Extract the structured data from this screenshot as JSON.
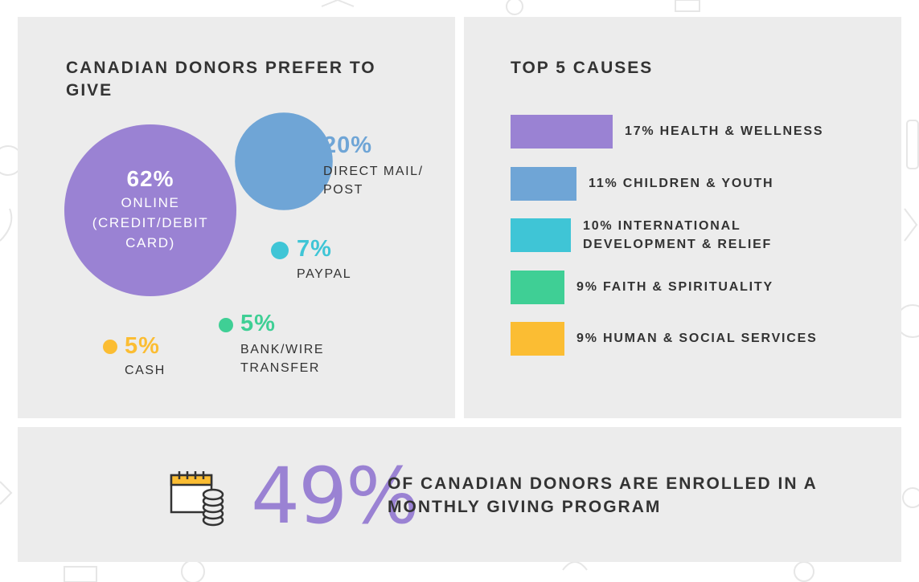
{
  "colors": {
    "purple": "#9a82d3",
    "blue": "#6fa5d6",
    "cyan": "#3fc5d6",
    "green": "#3fcf95",
    "yellow": "#fbbd33",
    "text": "#333333",
    "panel": "#ececec"
  },
  "chart_data": [
    {
      "type": "bubble",
      "title": "CANADIAN DONORS PREFER TO GIVE",
      "unit": "%",
      "series": [
        {
          "category": "ONLINE (CREDIT/DEBIT CARD)",
          "value": 62,
          "label": "62%",
          "color": "#9a82d3"
        },
        {
          "category": "DIRECT MAIL/ POST",
          "value": 20,
          "label": "20%",
          "color": "#6fa5d6"
        },
        {
          "category": "PAYPAL",
          "value": 7,
          "label": "7%",
          "color": "#3fc5d6"
        },
        {
          "category": "BANK/WIRE TRANSFER",
          "value": 5,
          "label": "5%",
          "color": "#3fcf95"
        },
        {
          "category": "CASH",
          "value": 5,
          "label": "5%",
          "color": "#fbbd33"
        }
      ]
    },
    {
      "type": "bar",
      "orientation": "horizontal",
      "title": "TOP 5 CAUSES",
      "unit": "%",
      "categories": [
        "HEALTH & WELLNESS",
        "CHILDREN & YOUTH",
        "INTERNATIONAL DEVELOPMENT & RELIEF",
        "FAITH & SPIRITUALITY",
        "HUMAN & SOCIAL SERVICES"
      ],
      "values": [
        17,
        11,
        10,
        9,
        9
      ],
      "labels": [
        "17% HEALTH & WELLNESS",
        "11% CHILDREN & YOUTH",
        "10% INTERNATIONAL DEVELOPMENT & RELIEF",
        "9% FAITH & SPIRITUALITY",
        "9% HUMAN & SOCIAL SERVICES"
      ],
      "colors": [
        "#9a82d3",
        "#6fa5d6",
        "#3fc5d6",
        "#3fcf95",
        "#fbbd33"
      ]
    }
  ],
  "stat": {
    "value": "49%",
    "text": "OF CANADIAN DONORS ARE ENROLLED IN A MONTHLY GIVING PROGRAM",
    "icon": "calendar-coins-icon"
  }
}
